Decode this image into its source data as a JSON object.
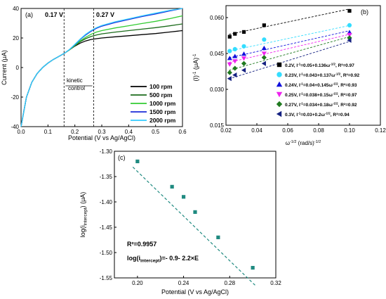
{
  "chart_data": [
    {
      "panel": "(a)",
      "type": "line",
      "xlabel": "Potential (V vs Ag/AgCl)",
      "ylabel": "Current (μA)",
      "xlim": [
        0.0,
        0.6
      ],
      "ylim": [
        -40,
        40
      ],
      "xticks": [
        "0.0",
        "0.1",
        "0.2",
        "0.3",
        "0.4",
        "0.5",
        "0.6"
      ],
      "yticks": [
        "-40",
        "-20",
        "0",
        "20",
        "40"
      ],
      "legend_position": "bottom-right",
      "annotations": {
        "v1_label": "0.17 V",
        "v1_x": 0.16,
        "v2_label": "0.27 V",
        "v2_x": 0.27,
        "kinetic_line1": "kinetic",
        "kinetic_line2": "control"
      },
      "series": [
        {
          "name": "100 rpm",
          "color": "#000000",
          "x": [
            0.0,
            0.01,
            0.02,
            0.04,
            0.06,
            0.08,
            0.1,
            0.12,
            0.14,
            0.16,
            0.18,
            0.2,
            0.22,
            0.24,
            0.26,
            0.28,
            0.3,
            0.35,
            0.4,
            0.45,
            0.5,
            0.55,
            0.6
          ],
          "y": [
            -40,
            -30,
            -20,
            -10,
            -4,
            0,
            3,
            5.5,
            7.5,
            9.5,
            12,
            14.5,
            16.5,
            18,
            19,
            19.5,
            20,
            20.8,
            21.5,
            22.3,
            23,
            24,
            25
          ]
        },
        {
          "name": "500 rpm",
          "color": "#1b6b1b",
          "x": [
            0.0,
            0.01,
            0.02,
            0.04,
            0.06,
            0.08,
            0.1,
            0.12,
            0.14,
            0.16,
            0.18,
            0.2,
            0.22,
            0.24,
            0.26,
            0.28,
            0.3,
            0.35,
            0.4,
            0.45,
            0.5,
            0.55,
            0.6
          ],
          "y": [
            -40,
            -30,
            -20,
            -10,
            -4,
            0,
            3,
            5.5,
            7.5,
            9.5,
            12,
            14.8,
            17.5,
            19.5,
            21,
            22,
            22.8,
            24,
            25,
            26,
            27,
            28.2,
            29.5
          ]
        },
        {
          "name": "1000 rpm",
          "color": "#33cc33",
          "x": [
            0.0,
            0.01,
            0.02,
            0.04,
            0.06,
            0.08,
            0.1,
            0.12,
            0.14,
            0.16,
            0.18,
            0.2,
            0.22,
            0.24,
            0.26,
            0.28,
            0.3,
            0.35,
            0.4,
            0.45,
            0.5,
            0.55,
            0.6
          ],
          "y": [
            -40,
            -30,
            -20,
            -10,
            -4,
            0,
            3,
            5.5,
            7.5,
            9.5,
            12,
            15,
            18,
            20.5,
            22.5,
            24,
            25,
            26.8,
            28.3,
            29.8,
            31.3,
            33,
            35
          ]
        },
        {
          "name": "1500 rpm",
          "color": "#1c2bd8",
          "x": [
            0.0,
            0.01,
            0.02,
            0.04,
            0.06,
            0.08,
            0.1,
            0.12,
            0.14,
            0.16,
            0.18,
            0.2,
            0.22,
            0.24,
            0.26,
            0.28,
            0.3,
            0.35,
            0.4,
            0.45,
            0.5,
            0.55,
            0.6
          ],
          "y": [
            -40,
            -30,
            -20,
            -10,
            -4,
            0,
            3,
            5.5,
            7.5,
            9.5,
            12.2,
            15.5,
            19,
            22,
            24.5,
            26.5,
            28,
            30.5,
            32.5,
            34.5,
            36.3,
            38.2,
            40
          ]
        },
        {
          "name": "2000 rpm",
          "color": "#33ccff",
          "x": [
            0.0,
            0.01,
            0.02,
            0.04,
            0.06,
            0.08,
            0.1,
            0.12,
            0.14,
            0.16,
            0.18,
            0.2,
            0.22,
            0.24,
            0.26,
            0.28,
            0.3,
            0.35,
            0.4,
            0.45,
            0.5,
            0.55,
            0.6
          ],
          "y": [
            -40,
            -30,
            -20,
            -10,
            -4,
            0,
            3,
            5.5,
            7.5,
            9.5,
            12.2,
            15.7,
            19.3,
            22.5,
            25,
            27,
            28.5,
            31,
            33,
            35,
            36.8,
            38.6,
            40
          ]
        }
      ]
    },
    {
      "panel": "(b)",
      "type": "scatter",
      "xlabel": "ω",
      "xlabel_sup": "-1/2",
      "xlabel_unit": " (rad/s)",
      "xlabel_unit_sup": "-1/2",
      "ylabel": "(I)",
      "ylabel_sup": "-1",
      "ylabel_unit": " (μA)",
      "ylabel_unit_sup": "-1",
      "xlim": [
        0.02,
        0.12
      ],
      "ylim": [
        0.015,
        0.065
      ],
      "xticks": [
        "0.02",
        "0.04",
        "0.06",
        "0.08",
        "0.10",
        "0.12"
      ],
      "yticks": [
        "0.015",
        "0.030",
        "0.045",
        "0.060"
      ],
      "legend_position": "bottom-right",
      "series": [
        {
          "name": "0.2V, I",
          "eq": "=0.05+0.136ω",
          "eq_sup": "-1/2",
          "r2": ", R²=0.97",
          "color": "#000000",
          "marker": "square",
          "x": [
            0.0224,
            0.0258,
            0.0316,
            0.0447,
            0.1
          ],
          "y": [
            0.052,
            0.0532,
            0.054,
            0.0568,
            0.0628
          ],
          "fit": [
            0.05,
            0.136
          ]
        },
        {
          "name": "0.23V, I",
          "eq": "=0.043+0.137ω",
          "eq_sup": "-1/2",
          "r2": ", R²=0.92",
          "color": "#33ddff",
          "marker": "circle",
          "x": [
            0.0224,
            0.0258,
            0.0316,
            0.0447,
            0.1
          ],
          "y": [
            0.046,
            0.0468,
            0.048,
            0.0508,
            0.0568
          ],
          "fit": [
            0.043,
            0.137
          ]
        },
        {
          "name": "0.24V, I",
          "eq": "=0.04+0.145ω",
          "eq_sup": "-1/2",
          "r2": ", R²=0.93",
          "color": "#1010dd",
          "marker": "triangle-up",
          "x": [
            0.0224,
            0.0258,
            0.0316,
            0.0447,
            0.1
          ],
          "y": [
            0.043,
            0.0438,
            0.0448,
            0.0472,
            0.0538
          ],
          "fit": [
            0.04,
            0.145
          ]
        },
        {
          "name": "0.25V, I",
          "eq": "=0.038+0.15ω",
          "eq_sup": "-1/2",
          "r2": ", R²=0.97",
          "color": "#ee22ee",
          "marker": "triangle-down",
          "x": [
            0.0224,
            0.0258,
            0.0316,
            0.0447,
            0.1
          ],
          "y": [
            0.0405,
            0.0418,
            0.043,
            0.045,
            0.0528
          ],
          "fit": [
            0.038,
            0.15
          ]
        },
        {
          "name": "0.27V, I",
          "eq": "=0.034+0.18ω",
          "eq_sup": "-1/2",
          "r2": ", R²=0.92",
          "color": "#1f7a1f",
          "marker": "diamond",
          "x": [
            0.0224,
            0.0258,
            0.0316,
            0.0447,
            0.1
          ],
          "y": [
            0.037,
            0.0388,
            0.0408,
            0.0433,
            0.0515
          ],
          "fit": [
            0.034,
            0.18
          ]
        },
        {
          "name": "0.3V, I",
          "eq": "=0.03+0.2ω",
          "eq_sup": "-1/2",
          "r2": ", R²=0.94",
          "color": "#142080",
          "marker": "triangle-left",
          "x": [
            0.0224,
            0.0258,
            0.0316,
            0.0447,
            0.1
          ],
          "y": [
            0.0345,
            0.036,
            0.038,
            0.0408,
            0.0505
          ],
          "fit": [
            0.03,
            0.2
          ]
        }
      ]
    },
    {
      "panel": "(c)",
      "type": "scatter",
      "xlabel": "Potential (V vs Ag/AgCl)",
      "ylabel": "log(i",
      "ylabel_sub": "intercept",
      "ylabel_unit": ") (μA)",
      "xlim": [
        0.18,
        0.32
      ],
      "ylim": [
        -1.55,
        -1.3
      ],
      "xticks": [
        "0.20",
        "0.24",
        "0.28",
        "0.32"
      ],
      "yticks": [
        "-1.30",
        "-1.35",
        "-1.40",
        "-1.45",
        "-1.50",
        "-1.55"
      ],
      "color": "#1f8a80",
      "r2_text": "R²=0.9957",
      "eq_prefix": "log(i",
      "eq_sub": "intercept",
      "eq_suffix": ")=- 0.9- 2.2×E",
      "x": [
        0.2,
        0.23,
        0.24,
        0.25,
        0.27,
        0.3
      ],
      "y": [
        -1.32,
        -1.37,
        -1.39,
        -1.42,
        -1.47,
        -1.53
      ],
      "fit": [
        -0.9,
        -2.2
      ]
    }
  ]
}
